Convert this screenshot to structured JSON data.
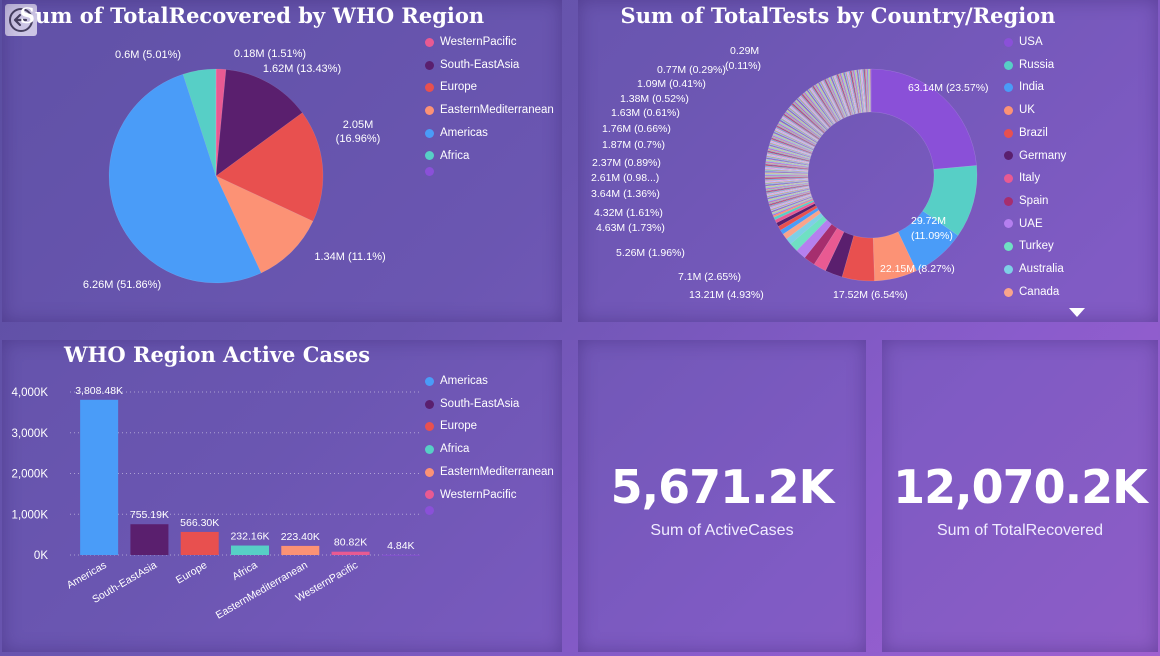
{
  "nav": {
    "back_icon": "back-arrow-icon"
  },
  "pie_title": "Sum of TotalRecovered by WHO Region",
  "donut_title": "Sum of TotalTests by Country/Region",
  "bar_title": "WHO Region Active Cases",
  "pie_legend": [
    {
      "label": "WesternPacific",
      "color": "#e95a92"
    },
    {
      "label": "South-EastAsia",
      "color": "#5a1f6e"
    },
    {
      "label": "Europe",
      "color": "#e8504f"
    },
    {
      "label": "EasternMediterranean",
      "color": "#fc9275"
    },
    {
      "label": "Americas",
      "color": "#4a9cf8"
    },
    {
      "label": "Africa",
      "color": "#57cfc6"
    },
    {
      "label": "",
      "color": "#8a50d8"
    }
  ],
  "donut_legend": [
    {
      "label": "USA",
      "color": "#8a50d8"
    },
    {
      "label": "Russia",
      "color": "#57cfc6"
    },
    {
      "label": "India",
      "color": "#4a9cf8"
    },
    {
      "label": "UK",
      "color": "#fc9275"
    },
    {
      "label": "Brazil",
      "color": "#e8504f"
    },
    {
      "label": "Germany",
      "color": "#5a1f6e"
    },
    {
      "label": "Italy",
      "color": "#e95a92"
    },
    {
      "label": "Spain",
      "color": "#a62e6e"
    },
    {
      "label": "UAE",
      "color": "#b57fef"
    },
    {
      "label": "Turkey",
      "color": "#6fe0c3"
    },
    {
      "label": "Australia",
      "color": "#7ed0e6"
    },
    {
      "label": "Canada",
      "color": "#f9a48b"
    }
  ],
  "bar_legend": [
    {
      "label": "Americas",
      "color": "#4a9cf8"
    },
    {
      "label": "South-EastAsia",
      "color": "#5a1f6e"
    },
    {
      "label": "Europe",
      "color": "#e8504f"
    },
    {
      "label": "Africa",
      "color": "#57cfc6"
    },
    {
      "label": "EasternMediterranean",
      "color": "#fc9275"
    },
    {
      "label": "WesternPacific",
      "color": "#e95a92"
    },
    {
      "label": "",
      "color": "#8a50d8"
    }
  ],
  "kpi1": {
    "value": "5,671.2K",
    "label": "Sum of ActiveCases"
  },
  "kpi2": {
    "value": "12,070.2K",
    "label": "Sum of TotalRecovered"
  },
  "chart_data": [
    {
      "type": "pie",
      "title": "Sum of TotalRecovered by WHO Region",
      "slices": [
        {
          "name": "WesternPacific",
          "value": 0.18,
          "label": "0.18M (1.51%)",
          "color": "#e95a92"
        },
        {
          "name": "South-EastAsia",
          "value": 1.62,
          "label": "1.62M (13.43%)",
          "color": "#5a1f6e"
        },
        {
          "name": "Europe",
          "value": 2.05,
          "label": "2.05M (16.96%)",
          "color": "#e8504f"
        },
        {
          "name": "EasternMediterranean",
          "value": 1.34,
          "label": "1.34M (11.1%)",
          "color": "#fc9275"
        },
        {
          "name": "Americas",
          "value": 6.26,
          "label": "6.26M (51.86%)",
          "color": "#4a9cf8"
        },
        {
          "name": "Africa",
          "value": 0.6,
          "label": "0.6M (5.01%)",
          "color": "#57cfc6"
        },
        {
          "name": "",
          "value": 0.001,
          "label": "",
          "color": "#8a50d8"
        }
      ],
      "legend": "right"
    },
    {
      "type": "pie",
      "title": "Sum of TotalTests by Country/Region",
      "labelled_values": [
        {
          "name": "USA",
          "value": 63.14,
          "label": "63.14M (23.57%)"
        },
        {
          "name": "Russia",
          "value": 29.72,
          "label": "29.72M (11.09%)"
        },
        {
          "name": "India",
          "value": 22.15,
          "label": "22.15M (8.27%)"
        },
        {
          "name": "UK",
          "value": 17.52,
          "label": "17.52M (6.54%)"
        },
        {
          "name": "Brazil",
          "value": 13.21,
          "label": "13.21M (4.93%)"
        },
        {
          "name": "",
          "value": 7.1,
          "label": "7.1M (2.65%)"
        },
        {
          "name": "",
          "value": 5.26,
          "label": "5.26M (1.96%)"
        },
        {
          "name": "",
          "value": 4.63,
          "label": "4.63M (1.73%)"
        },
        {
          "name": "",
          "value": 4.32,
          "label": "4.32M (1.61%)"
        },
        {
          "name": "",
          "value": 3.64,
          "label": "3.64M (1.36%)"
        },
        {
          "name": "",
          "value": 2.61,
          "label": "2.61M (0.98...)"
        },
        {
          "name": "",
          "value": 2.37,
          "label": "2.37M (0.89%)"
        },
        {
          "name": "",
          "value": 1.87,
          "label": "1.87M (0.7%)"
        },
        {
          "name": "",
          "value": 1.76,
          "label": "1.76M (0.66%)"
        },
        {
          "name": "",
          "value": 1.63,
          "label": "1.63M (0.61%)"
        },
        {
          "name": "",
          "value": 1.38,
          "label": "1.38M (0.52%)"
        },
        {
          "name": "",
          "value": 1.09,
          "label": "1.09M (0.41%)"
        },
        {
          "name": "",
          "value": 0.77,
          "label": "0.77M (0.29%)"
        },
        {
          "name": "",
          "value": 0.29,
          "label": "0.29M (0.11%)"
        }
      ],
      "inner_radius_fraction": 0.6,
      "legend": "right"
    },
    {
      "type": "bar",
      "title": "WHO Region Active Cases",
      "categories": [
        "Americas",
        "South-EastAsia",
        "Europe",
        "Africa",
        "EasternMediterranean",
        "WesternPacific",
        ""
      ],
      "values": [
        3808.48,
        755.19,
        566.3,
        232.16,
        223.4,
        80.82,
        4.84
      ],
      "value_labels": [
        "3,808.48K",
        "755.19K",
        "566.30K",
        "232.16K",
        "223.40K",
        "80.82K",
        "4.84K"
      ],
      "colors": [
        "#4a9cf8",
        "#5a1f6e",
        "#e8504f",
        "#57cfc6",
        "#fc9275",
        "#e95a92",
        "#8a50d8"
      ],
      "yticks": [
        "0K",
        "1,000K",
        "2,000K",
        "3,000K",
        "4,000K"
      ],
      "ylim": [
        0,
        4000
      ],
      "grid": true,
      "legend": "right"
    }
  ]
}
